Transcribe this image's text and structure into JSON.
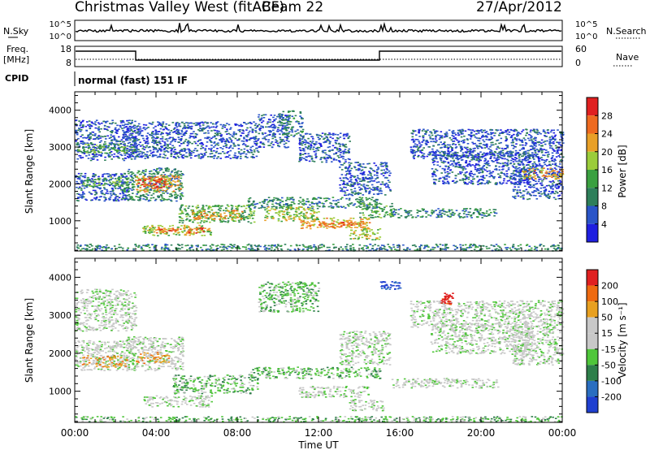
{
  "header": {
    "station": "Christmas Valley West (fitACF)",
    "beam": "Beam 22",
    "date": "27/Apr/2012"
  },
  "status_panels": {
    "nsky_label": "N.Sky",
    "nsky_ticks": [
      "10^5",
      "10^0"
    ],
    "nsearch_label": "N.Search",
    "nsearch_ticks": [
      "10^5",
      "10^0"
    ],
    "freq_label_1": "Freq.",
    "freq_label_2": "[MHz]",
    "freq_ticks": [
      "18",
      "8"
    ],
    "nave_label": "Nave",
    "nave_ticks": [
      "60",
      "0"
    ],
    "cpid_label": "CPID",
    "cpid_text": "normal (fast) 151 IF"
  },
  "colors": {
    "power_scale": [
      "#1f1fe0",
      "#2a55c8",
      "#2e7f5a",
      "#3aa040",
      "#9bcc3a",
      "#e8a028",
      "#ee6a20",
      "#e02020"
    ],
    "velocity_scale": [
      "#1f3fd0",
      "#2a6ec0",
      "#2e7f4a",
      "#4fc63a",
      "#c8c8c8",
      "#c8c8c8",
      "#e8a020",
      "#ee6a10",
      "#e02020"
    ]
  },
  "chart_data": [
    {
      "type": "heatmap",
      "panel": "power",
      "ylabel": "Slant Range [km]",
      "xlabel": "Time UT",
      "xlim_hours": [
        0,
        24
      ],
      "ylim_km": [
        180,
        4500
      ],
      "x_ticks": [
        "00:00",
        "04:00",
        "08:00",
        "12:00",
        "16:00",
        "20:00",
        "00:00"
      ],
      "y_ticks": [
        "1000",
        "2000",
        "3000",
        "4000"
      ],
      "colorbar": {
        "label": "Power [dB]",
        "ticks": [
          "28",
          "24",
          "20",
          "16",
          "12",
          "8",
          "4"
        ]
      },
      "bands": [
        {
          "t0": 0.0,
          "t1": 3.0,
          "r0": 2650,
          "r1": 3750,
          "level": 1
        },
        {
          "t0": 0.1,
          "t1": 2.9,
          "r0": 2850,
          "r1": 3100,
          "level": 3
        },
        {
          "t0": 0.0,
          "t1": 2.6,
          "r0": 1550,
          "r1": 2300,
          "level": 1
        },
        {
          "t0": 0.4,
          "t1": 2.6,
          "r0": 1950,
          "r1": 2200,
          "level": 3
        },
        {
          "t0": 2.3,
          "t1": 5.3,
          "r0": 1550,
          "r1": 2450,
          "level": 2
        },
        {
          "t0": 2.9,
          "t1": 5.2,
          "r0": 1800,
          "r1": 2250,
          "level": 5
        },
        {
          "t0": 3.1,
          "t1": 4.4,
          "r0": 1900,
          "r1": 2150,
          "level": 7
        },
        {
          "t0": 5.1,
          "t1": 8.8,
          "r0": 950,
          "r1": 1450,
          "level": 3
        },
        {
          "t0": 5.7,
          "t1": 8.2,
          "r0": 1050,
          "r1": 1300,
          "level": 5
        },
        {
          "t0": 3.3,
          "t1": 6.7,
          "r0": 600,
          "r1": 900,
          "level": 4
        },
        {
          "t0": 4.0,
          "t1": 6.3,
          "r0": 680,
          "r1": 840,
          "level": 6
        },
        {
          "t0": 2.5,
          "t1": 9.0,
          "r0": 2700,
          "r1": 3700,
          "level": 1
        },
        {
          "t0": 9.0,
          "t1": 10.5,
          "r0": 3000,
          "r1": 3900,
          "level": 1
        },
        {
          "t0": 10.0,
          "t1": 11.2,
          "r0": 3300,
          "r1": 4000,
          "level": 2
        },
        {
          "t0": 11.0,
          "t1": 13.5,
          "r0": 2600,
          "r1": 3400,
          "level": 1
        },
        {
          "t0": 13.0,
          "t1": 15.5,
          "r0": 1700,
          "r1": 2600,
          "level": 1
        },
        {
          "t0": 8.5,
          "t1": 15.0,
          "r0": 1350,
          "r1": 1650,
          "level": 2
        },
        {
          "t0": 9.3,
          "t1": 12.0,
          "r0": 1000,
          "r1": 1400,
          "level": 4
        },
        {
          "t0": 11.0,
          "t1": 14.5,
          "r0": 800,
          "r1": 1100,
          "level": 5
        },
        {
          "t0": 12.0,
          "t1": 14.3,
          "r0": 850,
          "r1": 1000,
          "level": 6
        },
        {
          "t0": 13.5,
          "t1": 15.0,
          "r0": 500,
          "r1": 800,
          "level": 4
        },
        {
          "t0": 14.0,
          "t1": 15.6,
          "r0": 1100,
          "r1": 1500,
          "level": 3
        },
        {
          "t0": 15.5,
          "t1": 20.8,
          "r0": 1100,
          "r1": 1350,
          "level": 2
        },
        {
          "t0": 16.5,
          "t1": 24.0,
          "r0": 2700,
          "r1": 3500,
          "level": 1
        },
        {
          "t0": 17.5,
          "t1": 22.5,
          "r0": 2000,
          "r1": 2900,
          "level": 1
        },
        {
          "t0": 21.5,
          "t1": 24.0,
          "r0": 1600,
          "r1": 2700,
          "level": 1
        },
        {
          "t0": 22.0,
          "t1": 24.0,
          "r0": 2150,
          "r1": 2450,
          "level": 5
        },
        {
          "t0": 0.0,
          "t1": 24.0,
          "r0": 200,
          "r1": 380,
          "level": 2
        }
      ]
    },
    {
      "type": "heatmap",
      "panel": "velocity",
      "ylabel": "Slant Range [km]",
      "xlabel": "Time UT",
      "xlim_hours": [
        0,
        24
      ],
      "ylim_km": [
        180,
        4500
      ],
      "x_ticks": [
        "00:00",
        "04:00",
        "08:00",
        "12:00",
        "16:00",
        "20:00",
        "00:00"
      ],
      "y_ticks": [
        "1000",
        "2000",
        "3000",
        "4000"
      ],
      "colorbar": {
        "label": "Velocity [m s⁻¹]",
        "ticks": [
          "200",
          "100",
          "50",
          "15",
          "-15",
          "-50",
          "-100",
          "-200"
        ]
      },
      "bands": [
        {
          "t0": 0.0,
          "t1": 3.0,
          "r0": 2600,
          "r1": 3700,
          "level": 4
        },
        {
          "t0": 0.0,
          "t1": 3.0,
          "r0": 1550,
          "r1": 2350,
          "level": 4
        },
        {
          "t0": 0.3,
          "t1": 2.6,
          "r0": 1650,
          "r1": 1950,
          "level": 6
        },
        {
          "t0": 2.5,
          "t1": 5.3,
          "r0": 1550,
          "r1": 2450,
          "level": 4
        },
        {
          "t0": 3.0,
          "t1": 4.6,
          "r0": 1750,
          "r1": 2050,
          "level": 6
        },
        {
          "t0": 4.8,
          "t1": 9.0,
          "r0": 950,
          "r1": 1450,
          "level": 3
        },
        {
          "t0": 3.3,
          "t1": 6.7,
          "r0": 600,
          "r1": 900,
          "level": 4
        },
        {
          "t0": 9.0,
          "t1": 12.0,
          "r0": 3100,
          "r1": 3900,
          "level": 3
        },
        {
          "t0": 8.6,
          "t1": 15.0,
          "r0": 1350,
          "r1": 1650,
          "level": 3
        },
        {
          "t0": 11.0,
          "t1": 14.5,
          "r0": 850,
          "r1": 1150,
          "level": 4
        },
        {
          "t0": 13.5,
          "t1": 15.2,
          "r0": 500,
          "r1": 800,
          "level": 4
        },
        {
          "t0": 13.0,
          "t1": 15.5,
          "r0": 1700,
          "r1": 2600,
          "level": 4
        },
        {
          "t0": 15.5,
          "t1": 20.8,
          "r0": 1100,
          "r1": 1350,
          "level": 4
        },
        {
          "t0": 16.5,
          "t1": 24.0,
          "r0": 2700,
          "r1": 3400,
          "level": 4
        },
        {
          "t0": 17.5,
          "t1": 22.5,
          "r0": 2000,
          "r1": 2800,
          "level": 4
        },
        {
          "t0": 21.5,
          "t1": 24.0,
          "r0": 1700,
          "r1": 2700,
          "level": 4
        },
        {
          "t0": 18.0,
          "t1": 18.6,
          "r0": 3300,
          "r1": 3600,
          "level": 8
        },
        {
          "t0": 15.0,
          "t1": 16.0,
          "r0": 3700,
          "r1": 3900,
          "level": 0
        },
        {
          "t0": 0.0,
          "t1": 24.0,
          "r0": 200,
          "r1": 350,
          "level": 3
        }
      ]
    }
  ]
}
